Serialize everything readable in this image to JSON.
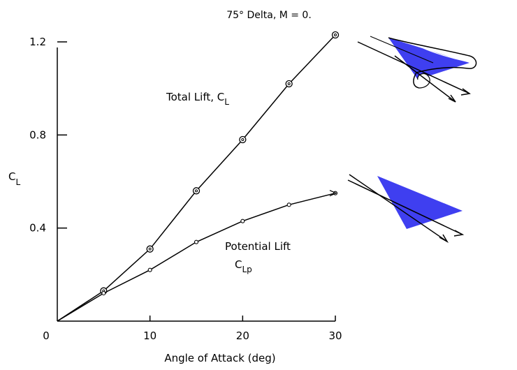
{
  "chart_data": {
    "type": "line",
    "title": "75° Delta,  M = 0.",
    "xlabel": "Angle of Attack (deg)",
    "ylabel": {
      "main": "C",
      "sub": "L"
    },
    "xlim": [
      0,
      30
    ],
    "ylim": [
      0,
      1.2
    ],
    "x_ticks": [
      {
        "value": 0,
        "label": "0"
      },
      {
        "value": 10,
        "label": "10"
      },
      {
        "value": 20,
        "label": "20"
      },
      {
        "value": 30,
        "label": "30"
      }
    ],
    "y_ticks": [
      {
        "value": 0.4,
        "label": "0.4"
      },
      {
        "value": 0.8,
        "label": "0.8"
      },
      {
        "value": 1.2,
        "label": "1.2"
      }
    ],
    "grid": false,
    "series": [
      {
        "name": "Total Lift",
        "label_main": "Total Lift, C",
        "label_sub": "L",
        "marker": "double-circle",
        "x": [
          0,
          5,
          10,
          15,
          20,
          25,
          30
        ],
        "y": [
          0,
          0.13,
          0.31,
          0.56,
          0.78,
          1.02,
          1.23
        ]
      },
      {
        "name": "Potential Lift",
        "label_main": "Potential Lift",
        "label_sub_main": "C",
        "label_sub": "Lp",
        "marker": "small-circle",
        "x": [
          0,
          5,
          10,
          15,
          20,
          25,
          30
        ],
        "y": [
          0,
          0.12,
          0.22,
          0.34,
          0.43,
          0.5,
          0.55
        ]
      }
    ],
    "colors": {
      "wing": "#3f3ff0",
      "line": "#000000"
    }
  }
}
